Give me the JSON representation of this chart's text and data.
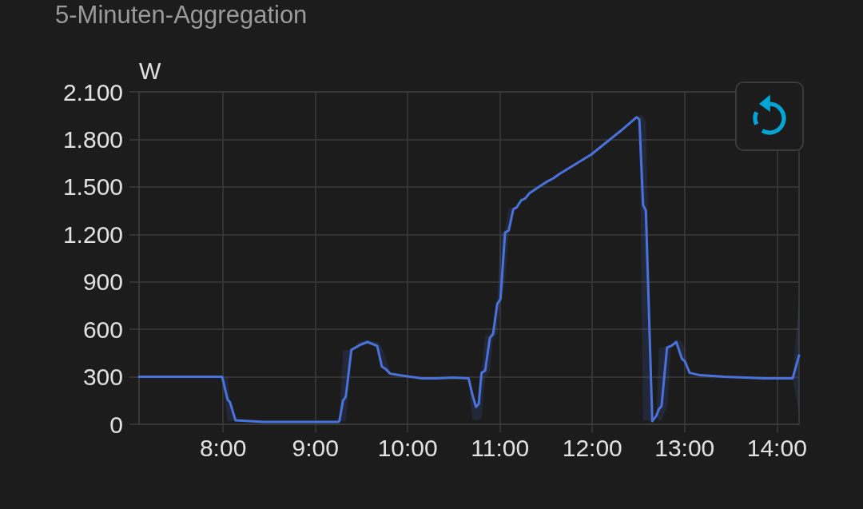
{
  "chart_data": {
    "type": "line",
    "title": "5-Minuten-Aggregation",
    "ylabel": "W",
    "x": [
      7.09,
      7.99,
      8.05,
      8.075,
      8.135,
      8.44,
      9.24,
      9.26,
      9.3,
      9.33,
      9.39,
      9.48,
      9.565,
      9.67,
      9.72,
      9.76,
      9.81,
      9.91,
      10.155,
      10.31,
      10.49,
      10.66,
      10.7,
      10.74,
      10.77,
      10.8,
      10.84,
      10.89,
      10.925,
      10.97,
      11.005,
      11.055,
      11.095,
      11.145,
      11.18,
      11.23,
      11.27,
      11.32,
      11.41,
      11.5,
      11.58,
      11.64,
      11.99,
      12.31,
      12.48,
      12.51,
      12.55,
      12.58,
      12.65,
      12.695,
      12.72,
      12.75,
      12.81,
      12.855,
      12.91,
      12.97,
      13.0,
      13.055,
      13.17,
      13.43,
      13.86,
      14.17,
      14.24
    ],
    "series": [
      {
        "color": "#4a72dc",
        "values": [
          300,
          300,
          155,
          140,
          25,
          15,
          15,
          20,
          150,
          175,
          470,
          500,
          520,
          495,
          365,
          350,
          320,
          310,
          290,
          290,
          295,
          290,
          190,
          110,
          130,
          325,
          340,
          545,
          570,
          760,
          790,
          1210,
          1225,
          1360,
          1370,
          1415,
          1425,
          1460,
          1495,
          1530,
          1555,
          1580,
          1705,
          1855,
          1940,
          1925,
          1385,
          1350,
          20,
          55,
          95,
          115,
          485,
          495,
          520,
          415,
          400,
          325,
          310,
          300,
          290,
          290,
          435
        ],
        "lower": [
          300,
          300,
          20,
          20,
          25,
          15,
          15,
          20,
          20,
          20,
          470,
          500,
          520,
          495,
          365,
          350,
          320,
          310,
          290,
          290,
          295,
          290,
          30,
          25,
          25,
          40,
          300,
          330,
          540,
          570,
          760,
          900,
          1200,
          1360,
          1370,
          1415,
          1425,
          1460,
          1495,
          1530,
          1555,
          1580,
          1705,
          1855,
          1940,
          1925,
          25,
          25,
          20,
          55,
          20,
          25,
          110,
          495,
          520,
          415,
          400,
          325,
          310,
          300,
          290,
          290,
          70
        ],
        "upper": [
          300,
          300,
          300,
          160,
          25,
          15,
          15,
          20,
          470,
          470,
          470,
          525,
          530,
          520,
          490,
          420,
          330,
          310,
          290,
          290,
          295,
          290,
          190,
          110,
          130,
          330,
          560,
          570,
          600,
          790,
          1200,
          1230,
          1370,
          1360,
          1370,
          1415,
          1425,
          1460,
          1495,
          1530,
          1555,
          1580,
          1705,
          1855,
          1940,
          1950,
          1950,
          1900,
          30,
          55,
          480,
          485,
          495,
          495,
          540,
          520,
          480,
          330,
          310,
          300,
          290,
          290,
          810
        ]
      }
    ],
    "xlim": [
      7.09,
      14.24
    ],
    "xticks": [
      {
        "value": 8,
        "label": "8:00"
      },
      {
        "value": 9,
        "label": "9:00"
      },
      {
        "value": 10,
        "label": "10:00"
      },
      {
        "value": 11,
        "label": "11:00"
      },
      {
        "value": 12,
        "label": "12:00"
      },
      {
        "value": 13,
        "label": "13:00"
      },
      {
        "value": 14,
        "label": "14:00"
      }
    ],
    "ylim": [
      0,
      2100
    ],
    "yticks": [
      0,
      300,
      600,
      900,
      {
        "value": 1200,
        "label": "1.200"
      },
      {
        "value": 1500,
        "label": "1.500"
      },
      {
        "value": 1800,
        "label": "1.800"
      },
      {
        "value": 2100,
        "label": "2.100"
      }
    ],
    "grid": true,
    "marker": "none",
    "line_style": "solid"
  }
}
